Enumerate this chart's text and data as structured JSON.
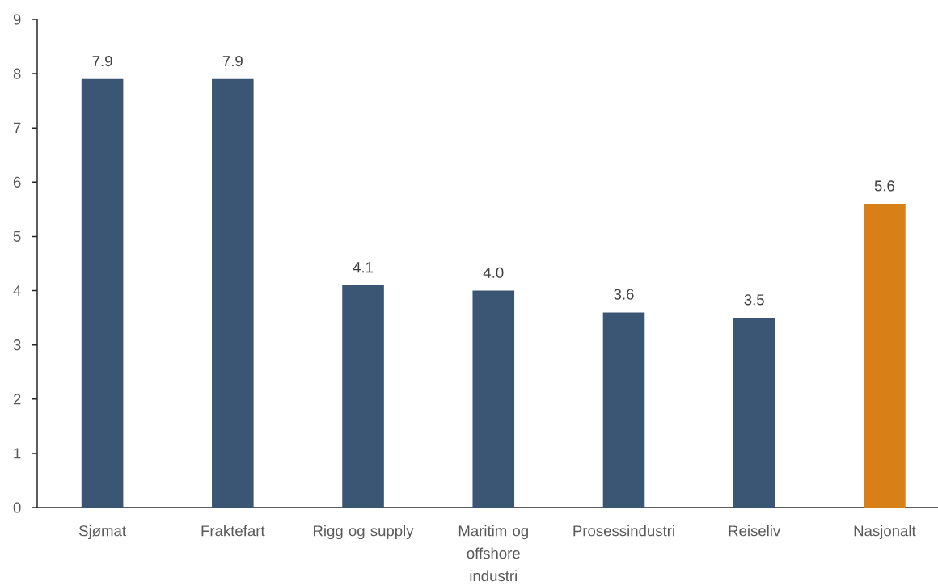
{
  "chart_data": {
    "type": "bar",
    "categories": [
      "Sjømat",
      "Fraktefart",
      "Rigg og supply",
      "Maritim og offshore industri",
      "Prosessindustri",
      "Reiseliv",
      "Nasjonalt"
    ],
    "values": [
      7.9,
      7.9,
      4.1,
      4.0,
      3.6,
      3.5,
      5.6
    ],
    "value_labels": [
      "7.9",
      "7.9",
      "4.1",
      "4.0",
      "3.6",
      "3.5",
      "5.6"
    ],
    "colors": [
      "#3a5674",
      "#3a5674",
      "#3a5674",
      "#3a5674",
      "#3a5674",
      "#3a5674",
      "#d87f17"
    ],
    "ylim": [
      0,
      9
    ],
    "yticks": [
      0,
      1,
      2,
      3,
      4,
      5,
      6,
      7,
      8,
      9
    ]
  }
}
